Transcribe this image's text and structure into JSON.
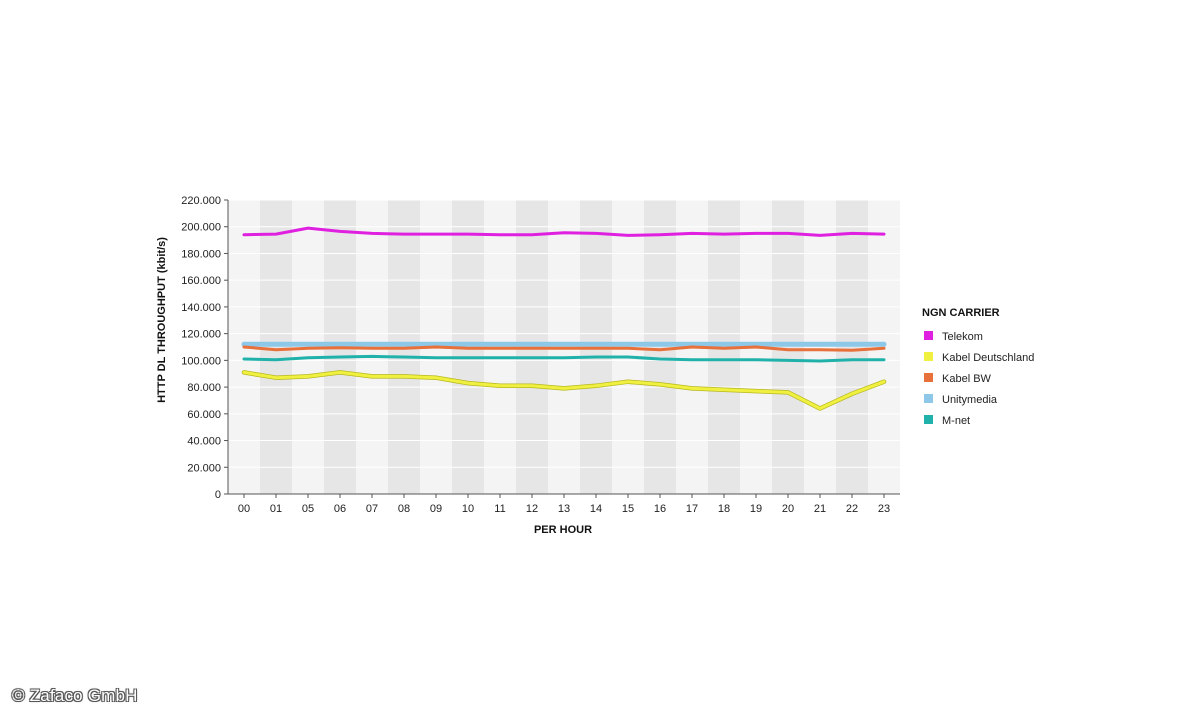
{
  "chart_data": {
    "type": "line",
    "title": "",
    "xlabel": "PER HOUR",
    "ylabel": "HTTP DL THROUGHPUT (kbit/s)",
    "categories": [
      "00",
      "01",
      "05",
      "06",
      "07",
      "08",
      "09",
      "10",
      "11",
      "12",
      "13",
      "14",
      "15",
      "16",
      "17",
      "18",
      "19",
      "20",
      "21",
      "22",
      "23"
    ],
    "ylim": [
      0,
      220000
    ],
    "yticks": [
      "0",
      "20.000",
      "40.000",
      "60.000",
      "80.000",
      "100.000",
      "120.000",
      "140.000",
      "160.000",
      "180.000",
      "200.000",
      "220.000"
    ],
    "grid": "alternating vertical bands",
    "legend": {
      "title": "NGN CARRIER",
      "placement": "right"
    },
    "series": [
      {
        "name": "Unitymedia",
        "color": "#8ec8e8",
        "values": [
          112000,
          112000,
          112000,
          112000,
          112000,
          112000,
          112000,
          112000,
          112000,
          112000,
          112000,
          112000,
          112000,
          112000,
          112000,
          112000,
          112000,
          112000,
          112000,
          112000,
          112000
        ]
      },
      {
        "name": "Kabel BW",
        "color": "#e8703a",
        "values": [
          110000,
          108000,
          109000,
          109500,
          109000,
          109000,
          110000,
          109000,
          109000,
          109000,
          109000,
          109000,
          109000,
          108000,
          110000,
          109000,
          110000,
          108000,
          108000,
          107500,
          109000
        ]
      },
      {
        "name": "M-net",
        "color": "#20b2aa",
        "values": [
          101000,
          100500,
          102000,
          102500,
          103000,
          102500,
          102000,
          102000,
          102000,
          102000,
          102000,
          102500,
          102500,
          101000,
          100500,
          100500,
          100500,
          100000,
          99500,
          100500,
          100500
        ]
      },
      {
        "name": "Kabel Deutschland",
        "color": "#f0f040",
        "values": [
          91000,
          87000,
          88000,
          91000,
          88000,
          88000,
          87000,
          83000,
          81000,
          81000,
          79000,
          81000,
          84000,
          82000,
          79000,
          78000,
          77000,
          76000,
          64000,
          75000,
          84000
        ]
      },
      {
        "name": "Telekom",
        "color": "#e020e0",
        "values": [
          194000,
          194500,
          199000,
          196500,
          195000,
          194500,
          194500,
          194500,
          194000,
          194000,
          195500,
          195000,
          193500,
          194000,
          195000,
          194500,
          195000,
          195000,
          193500,
          195000,
          194500
        ]
      }
    ],
    "legend_order": [
      "Telekom",
      "Kabel Deutschland",
      "Kabel BW",
      "Unitymedia",
      "M-net"
    ]
  },
  "watermark": "© Zafaco GmbH"
}
